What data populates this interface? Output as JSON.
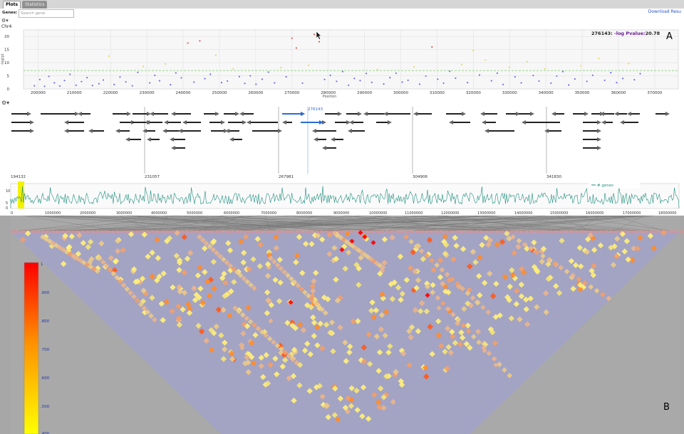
{
  "tabs": [
    {
      "label": "Plots",
      "active": true
    },
    {
      "label": "Statistics",
      "active": false
    }
  ],
  "genes_label": "Genes:",
  "search": {
    "placeholder": "Search gene"
  },
  "download_label": "Download Resu",
  "chromosome": "Chr4",
  "panel_labels": {
    "a": "A",
    "b": "B"
  },
  "readout": {
    "position": "276143:",
    "label": "-log Pvalue:",
    "value": "20.78"
  },
  "manhattan": {
    "ylabel": "-log(p)",
    "xlabel": "Position",
    "yticks": [
      0,
      5,
      10,
      15,
      20
    ],
    "xticks": [
      200000,
      210000,
      220000,
      230000,
      240000,
      250000,
      260000,
      270000,
      280000,
      290000,
      300000,
      310000,
      320000,
      330000,
      340000,
      350000,
      360000,
      370000
    ],
    "threshold": 7,
    "points": [
      [
        199000,
        1.2
      ],
      [
        200500,
        3.6
      ],
      [
        201800,
        1.0
      ],
      [
        203000,
        4.8
      ],
      [
        204500,
        2.3
      ],
      [
        206000,
        1.1
      ],
      [
        207300,
        3.2
      ],
      [
        208800,
        5.6
      ],
      [
        210500,
        1.4
      ],
      [
        212000,
        2.8
      ],
      [
        213500,
        4.3
      ],
      [
        215000,
        1.3
      ],
      [
        216800,
        2.0
      ],
      [
        218000,
        3.4
      ],
      [
        219500,
        12.5
      ],
      [
        221000,
        1.7
      ],
      [
        222600,
        4.5
      ],
      [
        224200,
        2.7
      ],
      [
        226000,
        1.2
      ],
      [
        227500,
        6.3
      ],
      [
        229000,
        8.6
      ],
      [
        230800,
        2.3
      ],
      [
        232200,
        5.2
      ],
      [
        233500,
        3.1
      ],
      [
        235100,
        9.5
      ],
      [
        236500,
        1.6
      ],
      [
        238000,
        6.1
      ],
      [
        239500,
        4.2
      ],
      [
        241300,
        17.5
      ],
      [
        243000,
        2.6
      ],
      [
        244600,
        18.3
      ],
      [
        246000,
        3.9
      ],
      [
        247500,
        5.6
      ],
      [
        249000,
        12.8
      ],
      [
        250600,
        2.4
      ],
      [
        252200,
        3.0
      ],
      [
        253800,
        7.6
      ],
      [
        255500,
        4.7
      ],
      [
        257000,
        2.1
      ],
      [
        258500,
        5.0
      ],
      [
        260100,
        1.8
      ],
      [
        261800,
        3.7
      ],
      [
        263500,
        6.4
      ],
      [
        265200,
        2.3
      ],
      [
        267000,
        8.1
      ],
      [
        268400,
        4.6
      ],
      [
        270000,
        19.3
      ],
      [
        271200,
        15.6
      ],
      [
        272900,
        2.2
      ],
      [
        274600,
        9.0
      ],
      [
        276143,
        20.78
      ],
      [
        277500,
        18.0
      ],
      [
        279000,
        3.6
      ],
      [
        280600,
        5.2
      ],
      [
        282300,
        2.9
      ],
      [
        284000,
        6.6
      ],
      [
        285600,
        1.4
      ],
      [
        287200,
        4.0
      ],
      [
        288800,
        3.2
      ],
      [
        290500,
        5.9
      ],
      [
        292000,
        2.5
      ],
      [
        293600,
        7.4
      ],
      [
        295300,
        1.9
      ],
      [
        297000,
        4.3
      ],
      [
        298700,
        6.0
      ],
      [
        300400,
        2.6
      ],
      [
        302000,
        3.3
      ],
      [
        303600,
        8.4
      ],
      [
        305200,
        1.8
      ],
      [
        306900,
        4.9
      ],
      [
        308600,
        16.0
      ],
      [
        310200,
        3.7
      ],
      [
        311800,
        2.2
      ],
      [
        313500,
        6.7
      ],
      [
        315100,
        4.1
      ],
      [
        316800,
        9.3
      ],
      [
        318400,
        2.4
      ],
      [
        320000,
        14.6
      ],
      [
        321700,
        5.3
      ],
      [
        323300,
        11.0
      ],
      [
        325000,
        3.1
      ],
      [
        326600,
        6.0
      ],
      [
        328200,
        1.7
      ],
      [
        329900,
        8.2
      ],
      [
        331500,
        4.6
      ],
      [
        333200,
        2.3
      ],
      [
        334800,
        10.4
      ],
      [
        336500,
        5.1
      ],
      [
        338100,
        3.0
      ],
      [
        339700,
        7.7
      ],
      [
        341400,
        2.2
      ],
      [
        343000,
        4.9
      ],
      [
        344700,
        6.6
      ],
      [
        346300,
        1.5
      ],
      [
        348000,
        3.8
      ],
      [
        349600,
        8.8
      ],
      [
        351300,
        2.9
      ],
      [
        352900,
        5.2
      ],
      [
        354600,
        11.6
      ],
      [
        356200,
        3.3
      ],
      [
        357900,
        6.2
      ],
      [
        359500,
        2.4
      ],
      [
        361200,
        4.0
      ],
      [
        362800,
        9.7
      ],
      [
        364400,
        3.5
      ],
      [
        366000,
        5.8
      ]
    ]
  },
  "genes": {
    "selected": "276143",
    "coords": [
      "194132",
      "231057",
      "267981",
      "304906",
      "341830"
    ]
  },
  "coverage": {
    "legend": "# genes",
    "yticks": [
      "10",
      "5",
      "0"
    ],
    "xticks": [
      "0",
      "1000000",
      "2000000",
      "3000000",
      "4000000",
      "5000000",
      "6000000",
      "7000000",
      "8000000",
      "9000000",
      "10000000",
      "11000000",
      "12000000",
      "13000000",
      "14000000",
      "15000000",
      "16000000",
      "17000000",
      "18000000"
    ]
  },
  "ld": {
    "scale": [
      "1",
      ".900",
      ".800",
      ".700",
      ".600",
      ".500",
      ".400"
    ]
  },
  "colors": {
    "accent": "#2b6cd6",
    "coverage": "#1f8f7f",
    "ld_background": "#a3a3c4",
    "ld_high": "#ff0000",
    "ld_low": "#ffef7a"
  }
}
